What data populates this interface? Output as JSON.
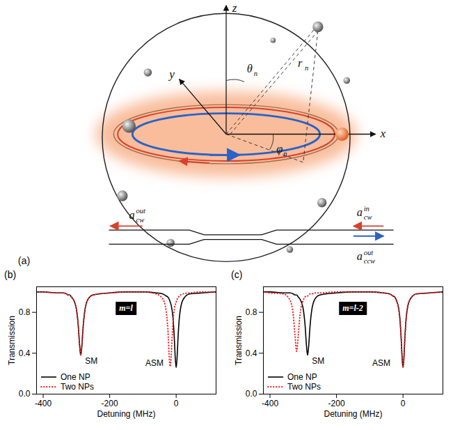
{
  "figure": {
    "panel_a": {
      "label": "(a)",
      "axes": [
        "x",
        "y",
        "z"
      ],
      "symbols": [
        {
          "base": "θ",
          "sub": "n"
        },
        {
          "base": "r",
          "sub": "n"
        },
        {
          "base": "φ",
          "sub": "n"
        }
      ],
      "ports": [
        {
          "base": "a",
          "sub": "cw",
          "sup": "out"
        },
        {
          "base": "a",
          "sub": "cw",
          "sup": "in"
        },
        {
          "base": "a",
          "sub": "ccw",
          "sup": "out"
        }
      ]
    }
  },
  "chart_data": [
    {
      "type": "line",
      "panel": "(b)",
      "inset_label": "m=l",
      "xlabel": "Detuning (MHz)",
      "ylabel": "Transmission",
      "x": [
        -420,
        -400,
        -360,
        -340,
        -330,
        -325,
        -320,
        -315,
        -310,
        -300,
        -295,
        -290,
        -287,
        -284,
        -280,
        -275,
        -265,
        -250,
        -200,
        -150,
        -100,
        -60,
        -40,
        -30,
        -25,
        -20,
        -18,
        -15,
        -10,
        -5,
        -3,
        0,
        3,
        5,
        10,
        20,
        40,
        80,
        120
      ],
      "series": [
        {
          "name": "One NP",
          "color": "#000000",
          "line_style": "solid",
          "values": [
            1.0,
            1.0,
            0.99,
            0.99,
            0.98,
            0.97,
            0.97,
            0.95,
            0.93,
            0.83,
            0.69,
            0.46,
            0.38,
            0.46,
            0.65,
            0.81,
            0.93,
            0.97,
            0.99,
            1.0,
            1.0,
            0.99,
            0.98,
            0.96,
            0.95,
            0.92,
            0.9,
            0.87,
            0.76,
            0.51,
            0.37,
            0.26,
            0.37,
            0.51,
            0.76,
            0.92,
            0.98,
            0.99,
            1.0
          ]
        },
        {
          "name": "Two NPs",
          "color": "#ee2222",
          "line_style": "dotted",
          "values": [
            1.0,
            1.0,
            0.99,
            0.99,
            0.98,
            0.97,
            0.97,
            0.95,
            0.93,
            0.83,
            0.69,
            0.46,
            0.38,
            0.46,
            0.65,
            0.81,
            0.93,
            0.97,
            0.99,
            1.0,
            1.0,
            0.98,
            0.93,
            0.81,
            0.64,
            0.32,
            0.27,
            0.38,
            0.68,
            0.84,
            0.87,
            0.9,
            0.93,
            0.94,
            0.96,
            0.98,
            0.99,
            1.0,
            1.0
          ]
        }
      ],
      "annotations": [
        {
          "text": "SM",
          "x": -255,
          "y": 0.32
        },
        {
          "text": "ASM",
          "x": -65,
          "y": 0.3
        }
      ],
      "xlim": [
        -420,
        120
      ],
      "ylim": [
        0,
        1.05
      ],
      "xticks": [
        -400,
        -200,
        0
      ],
      "yticks": [
        {
          "value": 0,
          "label": "0.0"
        },
        0.4,
        0.8
      ],
      "legend": "lower left"
    },
    {
      "type": "line",
      "panel": "(c)",
      "inset_label": "m=l-2",
      "xlabel": "Detuning (MHz)",
      "ylabel": "Transmission",
      "x": [
        -420,
        -400,
        -360,
        -340,
        -330,
        -325,
        -320,
        -315,
        -310,
        -300,
        -295,
        -290,
        -287,
        -284,
        -280,
        -275,
        -265,
        -250,
        -200,
        -150,
        -100,
        -60,
        -40,
        -30,
        -25,
        -20,
        -18,
        -15,
        -10,
        -5,
        -3,
        0,
        3,
        5,
        10,
        20,
        40,
        80,
        120
      ],
      "series": [
        {
          "name": "One NP",
          "color": "#000000",
          "line_style": "solid",
          "values": [
            1.0,
            1.0,
            0.99,
            0.99,
            0.98,
            0.97,
            0.97,
            0.95,
            0.93,
            0.83,
            0.69,
            0.46,
            0.38,
            0.46,
            0.65,
            0.81,
            0.93,
            0.97,
            0.99,
            1.0,
            1.0,
            0.99,
            0.98,
            0.96,
            0.95,
            0.92,
            0.9,
            0.87,
            0.76,
            0.51,
            0.37,
            0.26,
            0.37,
            0.51,
            0.76,
            0.92,
            0.98,
            0.99,
            1.0
          ]
        },
        {
          "name": "Two NPs",
          "color": "#ee2222",
          "line_style": "dotted",
          "values": [
            1.0,
            0.99,
            0.98,
            0.92,
            0.77,
            0.58,
            0.42,
            0.58,
            0.77,
            0.92,
            0.95,
            0.96,
            0.96,
            0.97,
            0.98,
            0.98,
            0.99,
            0.99,
            1.0,
            1.0,
            1.0,
            0.99,
            0.98,
            0.96,
            0.95,
            0.92,
            0.9,
            0.87,
            0.76,
            0.51,
            0.37,
            0.26,
            0.37,
            0.51,
            0.76,
            0.92,
            0.98,
            0.99,
            1.0
          ]
        }
      ],
      "annotations": [
        {
          "text": "SM",
          "x": -255,
          "y": 0.32
        },
        {
          "text": "ASM",
          "x": -65,
          "y": 0.3
        }
      ],
      "xlim": [
        -420,
        120
      ],
      "ylim": [
        0,
        1.05
      ],
      "xticks": [
        -400,
        -200,
        0
      ],
      "yticks": [
        {
          "value": 0,
          "label": "0.0"
        },
        0.4,
        0.8
      ],
      "legend": "lower left"
    }
  ]
}
